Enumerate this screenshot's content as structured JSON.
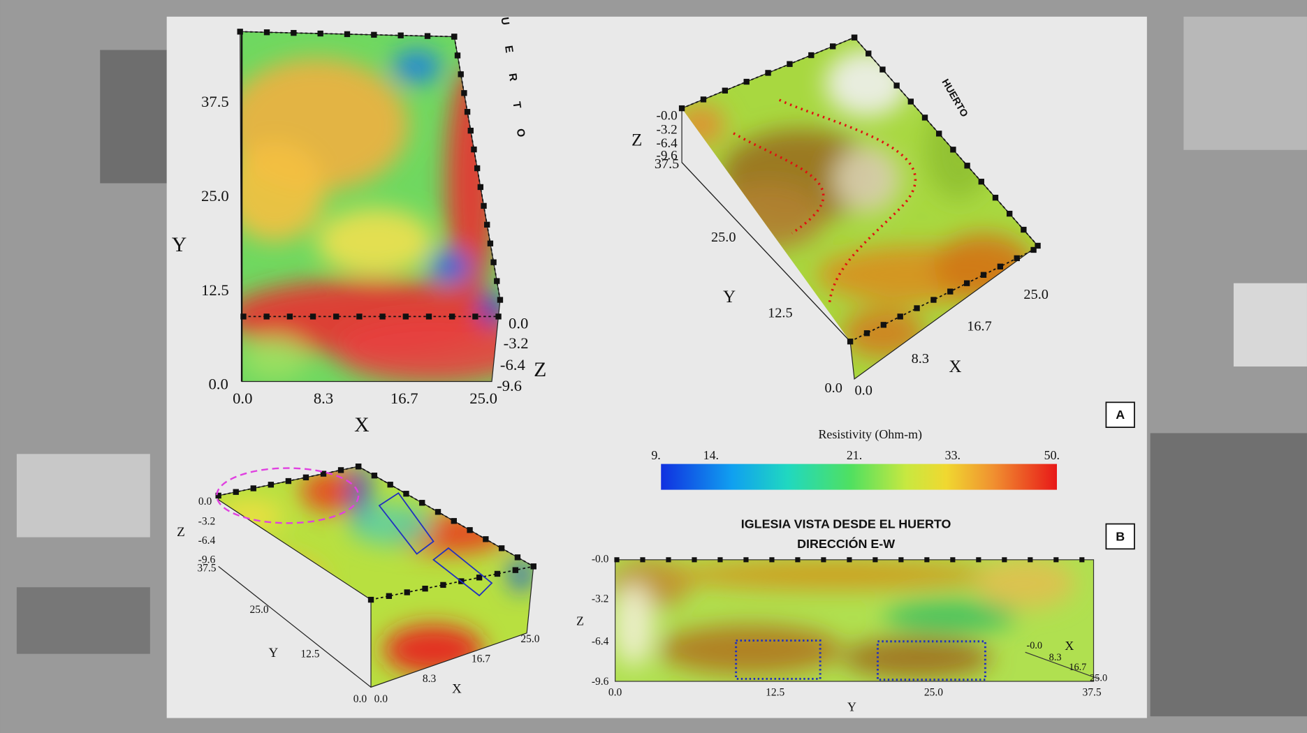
{
  "panel_top_left": {
    "y_ticks": [
      "37.5",
      "25.0",
      "12.5",
      "0.0"
    ],
    "x_ticks": [
      "0.0",
      "8.3",
      "16.7",
      "25.0"
    ],
    "z_ticks": [
      "0.0",
      "-3.2",
      "-6.4",
      "-9.6"
    ],
    "y_label": "Y",
    "x_label": "X",
    "z_label": "Z",
    "side_label": "HUERTO"
  },
  "panel_top_right": {
    "z_ticks": [
      "-0.0",
      "-3.2",
      "-6.4",
      "-9.6"
    ],
    "y_ticks": [
      "37.5",
      "25.0",
      "12.5",
      "0.0"
    ],
    "x_ticks": [
      "0.0",
      "8.3",
      "16.7",
      "25.0"
    ],
    "y_label": "Y",
    "x_label": "X",
    "z_label": "Z",
    "side_label": "HUERTO"
  },
  "marker_a": "A",
  "colorbar": {
    "title": "Resistivity (Ohm-m)",
    "ticks": [
      "9.",
      "14.",
      "21.",
      "33.",
      "50."
    ]
  },
  "panel_bottom_left": {
    "z_ticks": [
      "0.0",
      "-3.2",
      "-6.4",
      "-9.6"
    ],
    "y_ticks": [
      "37.5",
      "25.0",
      "12.5",
      "0.0"
    ],
    "x_ticks": [
      "0.0",
      "8.3",
      "16.7",
      "25.0"
    ],
    "y_label": "Y",
    "x_label": "X",
    "z_label": "Z"
  },
  "panel_bottom_right": {
    "title": "IGLESIA VISTA DESDE EL HUERTO",
    "subtitle": "DIRECCIÓN E-W",
    "z_ticks": [
      "-0.0",
      "-3.2",
      "-6.4",
      "-9.6"
    ],
    "y_ticks": [
      "0.0",
      "12.5",
      "25.0",
      "37.5"
    ],
    "x_ticks": [
      "-0.0",
      "8.3",
      "16.7",
      "25.0"
    ],
    "y_label": "Y",
    "x_label": "X",
    "z_label": "Z"
  },
  "marker_b": "B"
}
